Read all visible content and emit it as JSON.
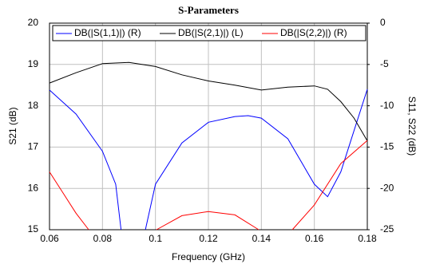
{
  "chart_data": {
    "type": "line",
    "title": "S-Parameters",
    "xlabel": "Frequency (GHz)",
    "ylabel": "S21 (dB)",
    "y2label": "S11, S22 (dB)",
    "xlim": [
      0.06,
      0.18
    ],
    "xticks": [
      0.06,
      0.08,
      0.1,
      0.12,
      0.14,
      0.16,
      0.18
    ],
    "ylim": [
      15,
      20
    ],
    "yticks": [
      15,
      16,
      17,
      18,
      19,
      20
    ],
    "y2lim": [
      -25,
      0
    ],
    "y2ticks": [
      -25,
      -20,
      -15,
      -10,
      -5,
      0
    ],
    "grid": true,
    "legend": "top",
    "series": [
      {
        "name": "DB(|S(1,1)|) (R)",
        "color": "#0000ff",
        "axis": "y2",
        "x": [
          0.06,
          0.07,
          0.08,
          0.085,
          0.087,
          0.09,
          0.0962,
          0.1,
          0.11,
          0.12,
          0.13,
          0.135,
          0.14,
          0.15,
          0.16,
          0.165,
          0.17,
          0.175,
          0.18
        ],
        "values": [
          -8.1,
          -11,
          -15.5,
          -19.5,
          -25,
          null,
          -25,
          -19.5,
          -14.5,
          -12,
          -11.3,
          -11.2,
          -11.5,
          -14,
          -19.5,
          -21,
          -18,
          -13,
          -8
        ]
      },
      {
        "name": "DB(|S(2,1)|) (L)",
        "color": "#000000",
        "x": [
          0.06,
          0.07,
          0.08,
          0.09,
          0.1,
          0.11,
          0.12,
          0.13,
          0.14,
          0.15,
          0.16,
          0.165,
          0.17,
          0.175,
          0.18
        ],
        "values": [
          18.55,
          18.8,
          19.02,
          19.05,
          18.95,
          18.75,
          18.6,
          18.5,
          18.38,
          18.45,
          18.48,
          18.4,
          18.1,
          17.7,
          17.15
        ]
      },
      {
        "name": "DB(|S(2,2)|) (R)",
        "color": "#ff0000",
        "axis": "y2",
        "x": [
          0.06,
          0.065,
          0.07,
          0.0748,
          0.09,
          0.1004,
          0.11,
          0.12,
          0.13,
          0.139,
          0.145,
          0.1517,
          0.16,
          0.17,
          0.18
        ],
        "values": [
          -18,
          -20.5,
          -23,
          -25,
          null,
          -25,
          -23.3,
          -22.8,
          -23.2,
          -25,
          null,
          -25,
          -22,
          -17,
          -14.2
        ]
      }
    ]
  }
}
